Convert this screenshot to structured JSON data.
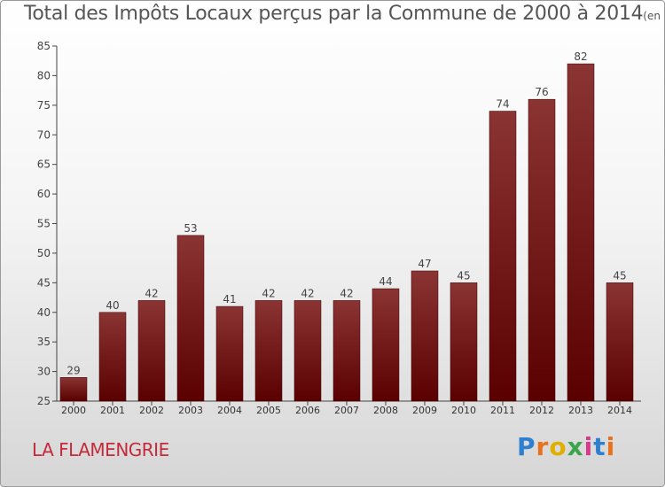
{
  "title": "Total des Impôts Locaux perçus par la Commune de 2000 à 2014",
  "unit": "(en milliers d'€)",
  "commune": "LA FLAMENGRIE",
  "logo_text": "Proxiti",
  "colors": {
    "bar_top": "#8b3434",
    "bar_bottom": "#5a0000",
    "commune": "#c42a3b"
  },
  "chart_data": {
    "type": "bar",
    "title": "Total des Impôts Locaux perçus par la Commune de 2000 à 2014",
    "unit": "(en milliers d'€)",
    "categories": [
      "2000",
      "2001",
      "2002",
      "2003",
      "2004",
      "2005",
      "2006",
      "2007",
      "2008",
      "2009",
      "2010",
      "2011",
      "2012",
      "2013",
      "2014"
    ],
    "values": [
      29,
      40,
      42,
      53,
      41,
      42,
      42,
      42,
      44,
      47,
      45,
      74,
      76,
      82,
      45
    ],
    "ylim": [
      25,
      85
    ],
    "yticks": [
      25,
      30,
      35,
      40,
      45,
      50,
      55,
      60,
      65,
      70,
      75,
      80,
      85
    ],
    "grid": false,
    "legend": "none"
  }
}
